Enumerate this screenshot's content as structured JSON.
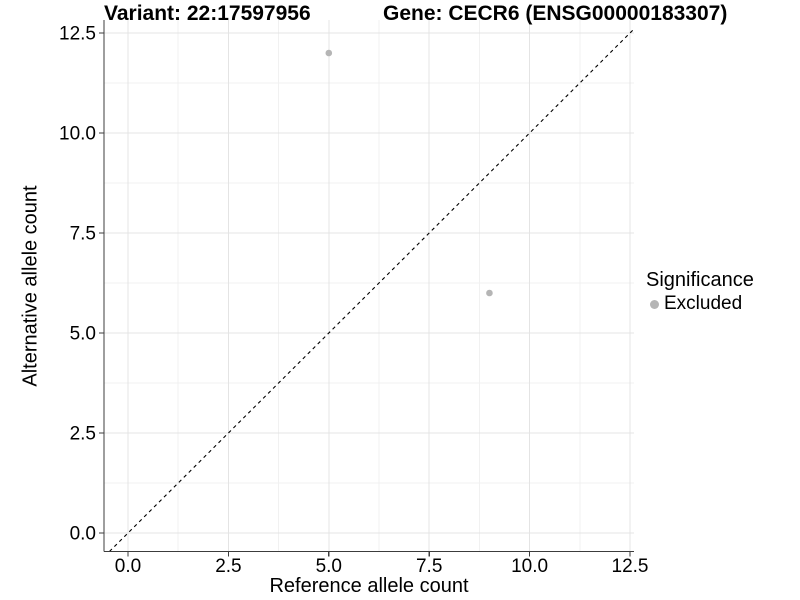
{
  "chart_data": {
    "type": "scatter",
    "titles": {
      "left": "Variant: 22:17597956",
      "right": "Gene: CECR6 (ENSG00000183307)"
    },
    "xlabel": "Reference allele count",
    "ylabel": "Alternative allele count",
    "x_ticks": {
      "major": [
        0,
        2.5,
        5,
        7.5,
        10,
        12.5
      ],
      "labels": [
        "0.0",
        "2.5",
        "5.0",
        "7.5",
        "10.0",
        "12.5"
      ]
    },
    "y_ticks": {
      "major": [
        0,
        2.5,
        5,
        7.5,
        10,
        12.5
      ],
      "labels": [
        "0.0",
        "2.5",
        "5.0",
        "7.5",
        "10.0",
        "12.5"
      ]
    },
    "xlim": [
      -0.62,
      12.6
    ],
    "ylim": [
      -0.47,
      12.83
    ],
    "grid": true,
    "minor_grid": true,
    "points": [
      {
        "x": 5,
        "y": 12,
        "series": "Excluded"
      },
      {
        "x": 9,
        "y": 6,
        "series": "Excluded"
      }
    ],
    "identity_line": {
      "slope": 1,
      "intercept": 0,
      "style": "dashed"
    },
    "legend": {
      "title": "Significance",
      "position": "right",
      "items": [
        {
          "label": "Excluded",
          "color": "#b5b5b5"
        }
      ]
    },
    "colors": {
      "point": "#b5b5b5",
      "grid_major": "#e4e4e4",
      "grid_minor": "#f1f1f1",
      "axis": "#3c3c3c",
      "identity_line": "#000000",
      "text": "#000000"
    }
  }
}
